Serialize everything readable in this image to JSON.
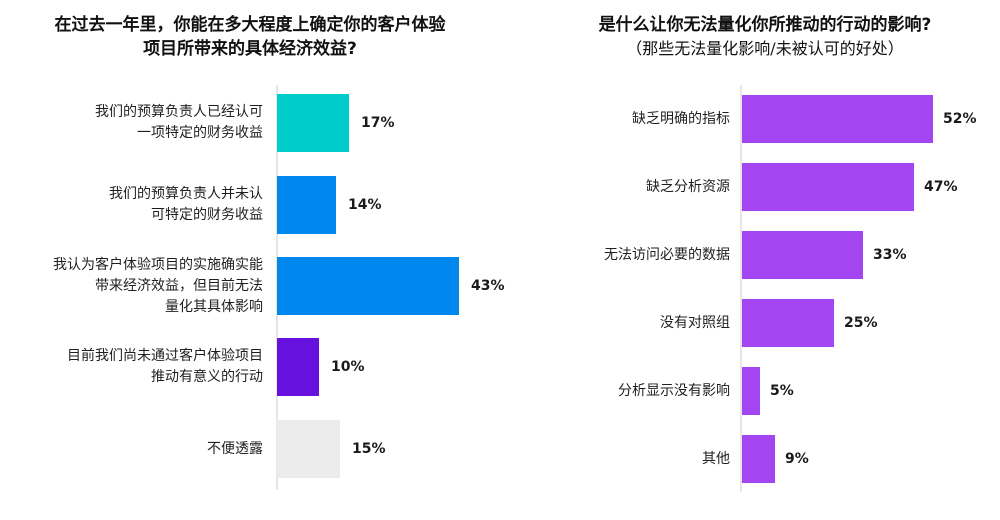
{
  "chart_data": [
    {
      "type": "bar",
      "orientation": "horizontal",
      "title": "在过去一年里，你能在多大程度上确定你的客户体验项目所带来的具体经济效益?",
      "title_lines": [
        "在过去一年里，你能在多大程度上确定你的客户体验",
        "项目所带来的具体经济效益?"
      ],
      "categories": [
        "我们的预算负责人已经认可一项特定的财务收益",
        "我们的预算负责人并未认可特定的财务收益",
        "我认为客户体验项目的实施确实能带来经济效益，但目前无法量化其具体影响",
        "目前我们尚未通过客户体验项目推动有意义的行动",
        "不便透露"
      ],
      "category_lines": [
        [
          "我们的预算负责人已经认可",
          "一项特定的财务收益"
        ],
        [
          "我们的预算负责人并未认",
          "可特定的财务收益"
        ],
        [
          "我认为客户体验项目的实施确实能",
          "带来经济效益，但目前无法",
          "量化其具体影响"
        ],
        [
          "目前我们尚未通过客户体验项目",
          "推动有意义的行动"
        ],
        [
          "不便透露"
        ]
      ],
      "values": [
        17,
        14,
        43,
        10,
        15
      ],
      "value_labels": [
        "17%",
        "14%",
        "43%",
        "10%",
        "15%"
      ],
      "colors": [
        "#00CCCC",
        "#0088EE",
        "#0088EE",
        "#6611DD",
        "#ECECEC"
      ],
      "unit": "%",
      "xlabel": "",
      "ylabel": "",
      "grid": false
    },
    {
      "type": "bar",
      "orientation": "horizontal",
      "title": "是什么让你无法量化你所推动的行动的影响?",
      "subtitle": "（那些无法量化影响/未被认可的好处）",
      "categories": [
        "缺乏明确的指标",
        "缺乏分析资源",
        "无法访问必要的数据",
        "没有对照组",
        "分析显示没有影响",
        "其他"
      ],
      "values": [
        52,
        47,
        33,
        25,
        5,
        9
      ],
      "value_labels": [
        "52%",
        "47%",
        "33%",
        "25%",
        "5%",
        "9%"
      ],
      "colors": [
        "#A346F2",
        "#A346F2",
        "#A346F2",
        "#A346F2",
        "#A346F2",
        "#A346F2"
      ],
      "unit": "%",
      "xlabel": "",
      "ylabel": "",
      "grid": false
    }
  ]
}
